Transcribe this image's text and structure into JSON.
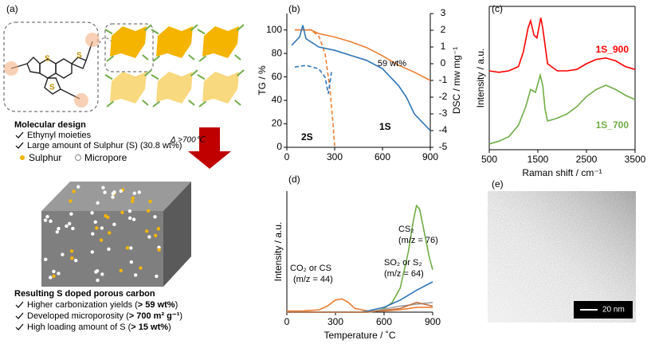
{
  "panel_labels": [
    "(a)",
    "(b)",
    "(c)",
    "(d)",
    "(e)"
  ],
  "panel_a": {
    "atom_label": "S",
    "design_title": "Molecular design",
    "design_items": [
      "Ethynyl moieties",
      "Large amount of Sulphur (S) (30.8 wt%)"
    ],
    "condition": "Δ >700℃",
    "legend": [
      "Sulphur",
      "Micropore"
    ],
    "result_title": "Resulting S doped porous carbon",
    "result_items": [
      {
        "text": "Higher carbonization yields (",
        "bold": "> 59 wt%",
        "end": ")"
      },
      {
        "text": "Developed microporosity (",
        "bold": "> 700 m² g⁻¹",
        "end": ")"
      },
      {
        "text": "High loading amount of S (",
        "bold": "> 15 wt%",
        "end": ")"
      }
    ]
  },
  "chart_data": [
    {
      "type": "line",
      "xlabel": "",
      "ylabel": "TG / %",
      "y2label": "DSC / mw mg⁻¹",
      "xlim": [
        0,
        900
      ],
      "xticks": [
        0,
        300,
        600,
        900
      ],
      "ylim": [
        0,
        114
      ],
      "yticks": [
        0,
        20,
        40,
        60,
        80,
        100
      ],
      "y2lim": [
        -5,
        3
      ],
      "y2ticks": [
        -5,
        -4,
        -3,
        -2,
        -1,
        0,
        1,
        2,
        3
      ],
      "annotations": [
        "59 wt%",
        "1S",
        "2S"
      ],
      "series": [
        {
          "color": "#ed7d31",
          "x": [
            50,
            150,
            200,
            300,
            400,
            500,
            600,
            700,
            800,
            900
          ],
          "values": [
            100,
            100,
            97,
            94,
            90,
            85,
            78,
            70,
            64,
            57
          ]
        },
        {
          "color": "#ed7d31",
          "dash": true,
          "x": [
            50,
            150,
            200,
            240,
            270,
            290,
            300
          ],
          "values": [
            100,
            100,
            95,
            80,
            50,
            20,
            0
          ]
        },
        {
          "color": "#2e75b6",
          "axis": "y2",
          "x": [
            30,
            80,
            100,
            120,
            200,
            300,
            400,
            500,
            600,
            650,
            700,
            750,
            800,
            900
          ],
          "values": [
            1.1,
            1.6,
            2.3,
            1.5,
            1,
            0.8,
            0.5,
            0.2,
            -0.3,
            -0.8,
            -1.3,
            -2,
            -3,
            -4
          ]
        },
        {
          "color": "#2e75b6",
          "axis": "y2",
          "dash": true,
          "x": [
            50,
            120,
            200,
            240,
            260,
            280
          ],
          "values": [
            -0.2,
            -0.1,
            -0.3,
            -0.8,
            -1.8,
            -0.5
          ]
        }
      ]
    },
    {
      "type": "line",
      "xlabel": "Temperature / ˚C",
      "ylabel": "Intensity / a.u.",
      "xlim": [
        0,
        900
      ],
      "xticks": [
        0,
        300,
        600,
        900
      ],
      "ylim": [
        0,
        1
      ],
      "annotations": [
        "CS₂",
        "(m/z = 76)",
        "SO₂ or S₂",
        "(m/z = 64)",
        "CO₂ or CS",
        "(m/z = 44)"
      ],
      "series": [
        {
          "color": "#ed7d31",
          "x": [
            0,
            100,
            200,
            250,
            300,
            340,
            380,
            420,
            500,
            600,
            700,
            800,
            900
          ],
          "values": [
            0.01,
            0.01,
            0.02,
            0.05,
            0.1,
            0.11,
            0.08,
            0.03,
            0.01,
            0.01,
            0.02,
            0.04,
            0.04
          ]
        },
        {
          "color": "#70ad47",
          "x": [
            0,
            400,
            500,
            560,
            600,
            650,
            700,
            750,
            780,
            800,
            820,
            850,
            880,
            900
          ],
          "values": [
            0,
            0,
            0,
            0.01,
            0.03,
            0.08,
            0.2,
            0.5,
            0.75,
            0.88,
            0.85,
            0.65,
            0.45,
            0.35
          ]
        },
        {
          "color": "#2e75b6",
          "x": [
            0,
            450,
            500,
            600,
            700,
            800,
            900
          ],
          "values": [
            0,
            0,
            0.01,
            0.04,
            0.1,
            0.18,
            0.25
          ]
        },
        {
          "color": "#a0a0a0",
          "x": [
            0,
            500,
            700,
            900
          ],
          "values": [
            0,
            0,
            0.05,
            0.08
          ]
        },
        {
          "color": "#c07040",
          "x": [
            0,
            500,
            700,
            800,
            900
          ],
          "values": [
            0,
            0,
            0.03,
            0.08,
            0.05
          ]
        }
      ]
    },
    {
      "type": "line",
      "xlabel": "Raman shift / cm⁻¹",
      "ylabel": "Intensity / a.u.",
      "xlim": [
        500,
        3500
      ],
      "xticks": [
        500,
        1500,
        2500,
        3500
      ],
      "ylim": [
        0,
        1
      ],
      "series": [
        {
          "name": "1S_900",
          "color": "#ff0000",
          "x": [
            500,
            700,
            900,
            1100,
            1200,
            1300,
            1350,
            1420,
            1480,
            1560,
            1600,
            1700,
            1900,
            2100,
            2300,
            2500,
            2700,
            2900,
            3100,
            3300,
            3500
          ],
          "values": [
            0.55,
            0.54,
            0.55,
            0.58,
            0.68,
            0.85,
            0.9,
            0.8,
            0.78,
            0.92,
            0.85,
            0.6,
            0.55,
            0.55,
            0.56,
            0.6,
            0.63,
            0.64,
            0.62,
            0.58,
            0.56
          ]
        },
        {
          "name": "1S_700",
          "color": "#70ad47",
          "x": [
            500,
            700,
            900,
            1100,
            1250,
            1350,
            1450,
            1550,
            1600,
            1650,
            1700,
            1900,
            2100,
            2300,
            2500,
            2700,
            2900,
            3100,
            3300,
            3500
          ],
          "values": [
            0.04,
            0.06,
            0.09,
            0.17,
            0.3,
            0.42,
            0.4,
            0.52,
            0.45,
            0.28,
            0.2,
            0.22,
            0.25,
            0.3,
            0.37,
            0.42,
            0.45,
            0.42,
            0.38,
            0.35
          ]
        }
      ]
    }
  ],
  "panel_e": {
    "scale_bar": "20 nm"
  }
}
